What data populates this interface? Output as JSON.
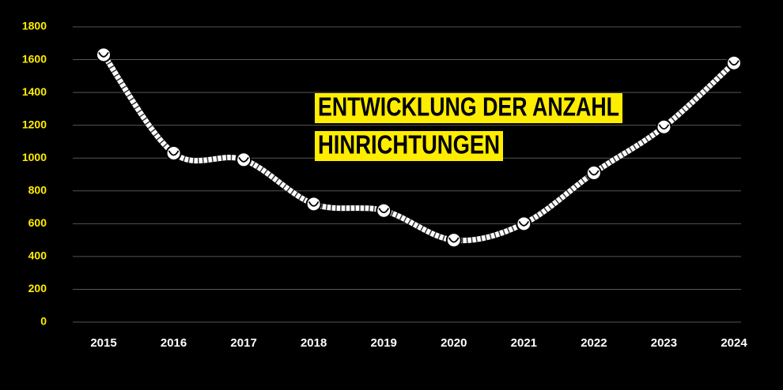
{
  "chart_data": {
    "type": "line",
    "title_lines": [
      "ENTWICKLUNG DER ANZAHL",
      "HINRICHTUNGEN"
    ],
    "categories": [
      "2015",
      "2016",
      "2017",
      "2018",
      "2019",
      "2020",
      "2021",
      "2022",
      "2023",
      "2024"
    ],
    "values": [
      1630,
      1030,
      990,
      720,
      680,
      500,
      600,
      910,
      1190,
      1580
    ],
    "color": "#ffffff",
    "ylim": [
      0,
      1800
    ],
    "yticks": [
      0,
      200,
      400,
      600,
      800,
      1000,
      1200,
      1400,
      1600,
      1800
    ],
    "grid": true
  }
}
